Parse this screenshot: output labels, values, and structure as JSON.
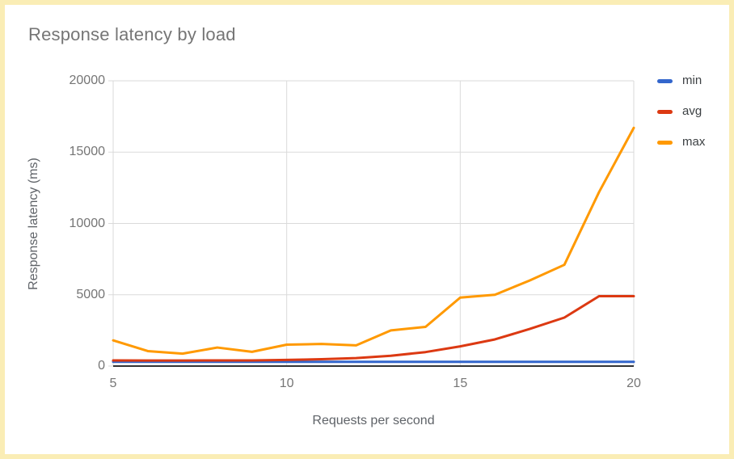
{
  "page": {
    "border_color": "#FAEDB5",
    "background": "#FFFFFF"
  },
  "colors": {
    "title": "#757575",
    "tick_label": "#757575",
    "axis_title": "#5F6368",
    "legend_label": "#3C4043",
    "gridline": "#DADADA",
    "axis_line": "#333333",
    "series_min": "#3366CC",
    "series_avg": "#DC3912",
    "series_max": "#FF9900"
  },
  "chart_data": {
    "type": "line",
    "title": "Response latency by load",
    "xlabel": "Requests per second",
    "ylabel": "Response latency (ms)",
    "x": [
      5,
      6,
      7,
      8,
      9,
      10,
      11,
      12,
      13,
      14,
      15,
      16,
      17,
      18,
      19,
      20
    ],
    "series": [
      {
        "name": "min",
        "color": "#3366CC",
        "values": [
          300,
          300,
          300,
          300,
          300,
          300,
          300,
          300,
          300,
          300,
          300,
          300,
          300,
          300,
          300,
          300
        ]
      },
      {
        "name": "avg",
        "color": "#DC3912",
        "values": [
          400,
          390,
          390,
          395,
          400,
          430,
          480,
          560,
          720,
          980,
          1380,
          1870,
          2600,
          3400,
          4900,
          4900
        ]
      },
      {
        "name": "max",
        "color": "#FF9900",
        "values": [
          1800,
          1050,
          870,
          1300,
          1000,
          1500,
          1550,
          1450,
          2500,
          2750,
          4800,
          5000,
          6000,
          7100,
          12200,
          16700
        ]
      }
    ],
    "xlim": [
      5,
      20
    ],
    "ylim": [
      0,
      20000
    ],
    "x_ticks": [
      5,
      10,
      15,
      20
    ],
    "y_ticks": [
      0,
      5000,
      10000,
      15000,
      20000
    ],
    "grid": true,
    "legend_position": "right",
    "line_width": 3
  }
}
